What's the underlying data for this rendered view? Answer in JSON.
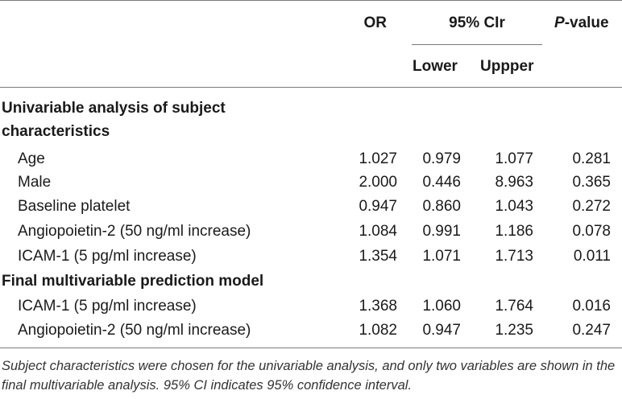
{
  "header": {
    "or": "OR",
    "ci": "95% CIr",
    "lower": "Lower",
    "upper": "Uppper",
    "pvalue_italic": "P",
    "pvalue_rest": "-value"
  },
  "sections": [
    {
      "title_line1": "Univariable analysis of subject",
      "title_line2": "characteristics",
      "rows": [
        {
          "label": "Age",
          "or": "1.027",
          "lower": "0.979",
          "upper": "1.077",
          "p": "0.281"
        },
        {
          "label": "Male",
          "or": "2.000",
          "lower": "0.446",
          "upper": "8.963",
          "p": "0.365"
        },
        {
          "label": "Baseline platelet",
          "or": "0.947",
          "lower": "0.860",
          "upper": "1.043",
          "p": "0.272"
        },
        {
          "label": "Angiopoietin-2 (50 ng/ml increase)",
          "or": "1.084",
          "lower": "0.991",
          "upper": "1.186",
          "p": "0.078"
        },
        {
          "label": "ICAM-1 (5 pg/ml increase)",
          "or": "1.354",
          "lower": "1.071",
          "upper": "1.713",
          "p": "0.011"
        }
      ]
    },
    {
      "title_line1": "Final multivariable prediction model",
      "rows": [
        {
          "label": "ICAM-1 (5 pg/ml increase)",
          "or": "1.368",
          "lower": "1.060",
          "upper": "1.764",
          "p": "0.016"
        },
        {
          "label": "Angiopoietin-2 (50 ng/ml increase)",
          "or": "1.082",
          "lower": "0.947",
          "upper": "1.235",
          "p": "0.247"
        }
      ]
    }
  ],
  "footnote": "Subject characteristics were chosen for the univariable analysis, and only two variables are shown in the final multivariable analysis. 95% CI indicates 95% confidence interval."
}
